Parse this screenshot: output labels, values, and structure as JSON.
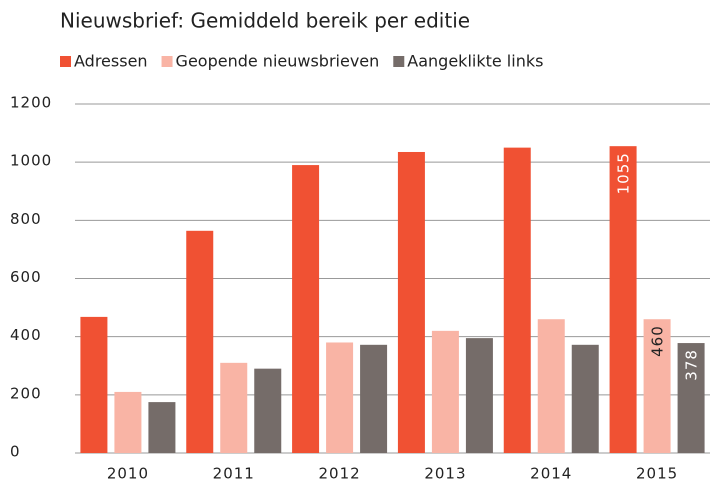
{
  "chart_data": {
    "type": "bar",
    "title": "Nieuwsbrief: Gemiddeld bereik per editie",
    "categories": [
      "2010",
      "2011",
      "2012",
      "2013",
      "2014",
      "2015"
    ],
    "series": [
      {
        "name": "Adressen",
        "color": "#f05133",
        "values": [
          468,
          764,
          990,
          1035,
          1050,
          1055
        ],
        "value_labels": [
          null,
          null,
          null,
          null,
          null,
          "1055"
        ]
      },
      {
        "name": "Geopende nieuwsbrieven",
        "color": "#f9b4a5",
        "values": [
          210,
          310,
          380,
          420,
          460,
          460
        ],
        "value_labels": [
          null,
          null,
          null,
          null,
          null,
          "460"
        ]
      },
      {
        "name": "Aangeklikte links",
        "color": "#756c69",
        "values": [
          175,
          290,
          372,
          395,
          372,
          378
        ],
        "value_labels": [
          null,
          null,
          null,
          null,
          null,
          "378"
        ]
      }
    ],
    "ylim": [
      0,
      1200
    ],
    "yticks": [
      0,
      200,
      400,
      600,
      800,
      1000,
      1200
    ],
    "grid": true
  }
}
